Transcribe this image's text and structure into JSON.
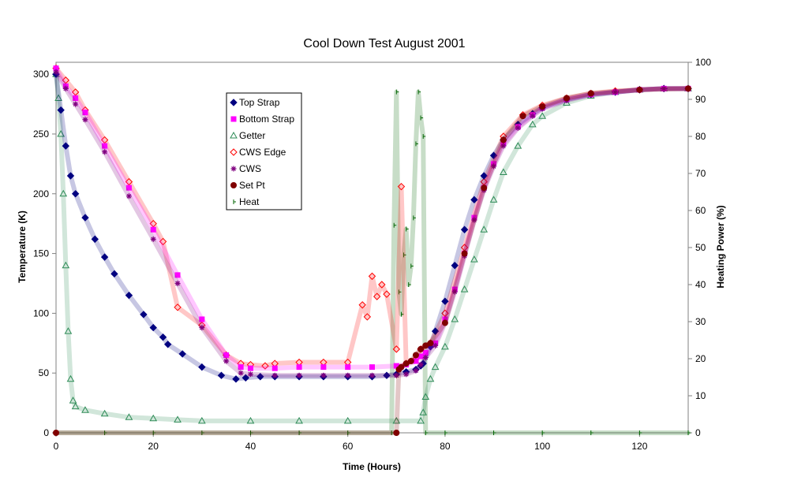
{
  "chart_data": {
    "type": "scatter",
    "title": "Cool Down Test August 2001",
    "xlabel": "Time (Hours)",
    "ylabel": "Temperature (K)",
    "y2label": "Heating Power (%)",
    "xlim": [
      0,
      130
    ],
    "ylim": [
      0,
      310
    ],
    "y2lim": [
      0,
      100
    ],
    "xticks": [
      0,
      20,
      40,
      60,
      80,
      100,
      120
    ],
    "yticks": [
      0,
      50,
      100,
      150,
      200,
      250,
      300
    ],
    "y2ticks": [
      0,
      10,
      20,
      30,
      40,
      50,
      60,
      70,
      80,
      90,
      100
    ],
    "grid": false,
    "legend_position": "upper-middle",
    "series": [
      {
        "name": "Top Strap",
        "marker": "diamond",
        "color": "#000080",
        "fill": "#000080",
        "axis": "left",
        "x": [
          0,
          1,
          2,
          3,
          4,
          6,
          8,
          10,
          12,
          15,
          18,
          20,
          22,
          23,
          26,
          30,
          34,
          37,
          39,
          42,
          45,
          50,
          55,
          60,
          65,
          68,
          70,
          72,
          74,
          75,
          75.5,
          77,
          78,
          80,
          82,
          84,
          86,
          88,
          90,
          92,
          95,
          98,
          100,
          105,
          110,
          115,
          120,
          125,
          130
        ],
        "y": [
          300,
          270,
          240,
          215,
          200,
          180,
          162,
          147,
          133,
          115,
          99,
          88,
          80,
          74,
          66,
          55,
          48,
          45,
          46,
          47,
          47,
          47,
          47,
          47,
          47,
          48,
          49,
          51,
          53,
          56,
          58,
          72,
          85,
          110,
          140,
          170,
          195,
          215,
          232,
          245,
          258,
          267,
          272,
          279,
          283,
          285,
          287,
          288,
          288
        ]
      },
      {
        "name": "Bottom Strap",
        "marker": "square",
        "color": "#ff00ff",
        "fill": "#ff00ff",
        "axis": "left",
        "x": [
          0,
          2,
          4,
          6,
          10,
          15,
          20,
          25,
          30,
          35,
          38,
          40,
          45,
          50,
          55,
          60,
          65,
          70,
          72,
          74,
          75,
          76,
          78,
          80,
          82,
          84,
          86,
          88,
          90,
          92,
          95,
          98,
          100,
          105,
          110,
          115,
          120,
          125,
          130
        ],
        "y": [
          305,
          290,
          280,
          268,
          240,
          205,
          170,
          132,
          95,
          65,
          55,
          54,
          54,
          55,
          55,
          55,
          55,
          56,
          57,
          60,
          64,
          67,
          75,
          95,
          120,
          150,
          180,
          205,
          225,
          242,
          256,
          266,
          272,
          279,
          283,
          285,
          287,
          288,
          288
        ]
      },
      {
        "name": "Getter",
        "marker": "triangle",
        "color": "#2e8b57",
        "fill": "none",
        "axis": "left",
        "x": [
          0,
          0.5,
          1,
          1.5,
          2,
          2.5,
          3,
          3.5,
          4,
          6,
          10,
          15,
          20,
          25,
          30,
          40,
          50,
          60,
          70,
          75,
          75.5,
          76,
          77,
          78,
          80,
          82,
          84,
          86,
          88,
          90,
          92,
          95,
          98,
          100,
          105,
          110,
          115,
          120,
          125,
          130
        ],
        "y": [
          300,
          280,
          250,
          200,
          140,
          85,
          45,
          27,
          22,
          19,
          16,
          13,
          12,
          11,
          10,
          10,
          10,
          10,
          10,
          10,
          17,
          30,
          45,
          55,
          72,
          95,
          120,
          145,
          170,
          195,
          218,
          240,
          258,
          265,
          276,
          282,
          285,
          287,
          288,
          288
        ]
      },
      {
        "name": "CWS Edge",
        "marker": "diamond-open",
        "color": "#ff0000",
        "fill": "none",
        "axis": "left",
        "x": [
          0,
          2,
          4,
          6,
          10,
          15,
          20,
          22,
          25,
          30,
          35,
          38,
          40,
          43,
          45,
          50,
          55,
          60,
          63,
          64,
          65,
          66,
          67,
          68,
          70,
          71,
          72,
          74,
          75,
          77,
          80,
          84,
          88,
          92,
          96,
          100,
          105,
          110,
          115,
          120,
          125,
          130
        ],
        "y": [
          305,
          295,
          285,
          270,
          245,
          210,
          175,
          160,
          105,
          90,
          65,
          58,
          57,
          56,
          58,
          59,
          59,
          59,
          107,
          97,
          131,
          114,
          124,
          116,
          70,
          206,
          58,
          62,
          70,
          75,
          100,
          155,
          210,
          248,
          266,
          274,
          280,
          284,
          286,
          287,
          288,
          288
        ]
      },
      {
        "name": "CWS",
        "marker": "star",
        "color": "#800080",
        "fill": "#800080",
        "axis": "left",
        "x": [
          0,
          2,
          4,
          6,
          10,
          15,
          20,
          25,
          30,
          35,
          38,
          40,
          45,
          50,
          55,
          60,
          65,
          70,
          72,
          74,
          75,
          76,
          78,
          80,
          82,
          84,
          86,
          88,
          90,
          92,
          95,
          98,
          100,
          105,
          110,
          115,
          120,
          125,
          130
        ],
        "y": [
          302,
          288,
          275,
          262,
          235,
          198,
          162,
          125,
          88,
          60,
          50,
          49,
          48,
          48,
          48,
          48,
          48,
          48,
          49,
          52,
          57,
          63,
          73,
          92,
          118,
          148,
          178,
          203,
          223,
          240,
          255,
          265,
          271,
          278,
          283,
          285,
          287,
          288,
          288
        ]
      },
      {
        "name": "Set Pt",
        "marker": "circle",
        "color": "#800000",
        "fill": "#800000",
        "axis": "left",
        "x": [
          0,
          70,
          70.5,
          71,
          72,
          73,
          74,
          75,
          76,
          77,
          80,
          84,
          88,
          92,
          96,
          100,
          105,
          110,
          120,
          130
        ],
        "y": [
          0,
          0,
          53,
          55,
          58,
          60,
          65,
          70,
          73,
          75,
          92,
          150,
          205,
          245,
          265,
          273,
          280,
          284,
          287,
          288
        ]
      },
      {
        "name": "Heat",
        "marker": "tick",
        "color": "#006400",
        "fill": "#006400",
        "axis": "right",
        "x": [
          0,
          10,
          20,
          30,
          40,
          50,
          60,
          69,
          69.5,
          70,
          70.5,
          71,
          71.5,
          72,
          72.5,
          73,
          73.5,
          74,
          74.5,
          75,
          75.5,
          76,
          80,
          90,
          100,
          110,
          120,
          130
        ],
        "y": [
          0,
          0,
          0,
          0,
          0,
          0,
          0,
          0,
          56,
          92,
          38,
          32,
          48,
          55,
          40,
          45,
          58,
          78,
          92,
          85,
          80,
          0,
          0,
          0,
          0,
          0,
          0,
          0
        ]
      }
    ]
  }
}
